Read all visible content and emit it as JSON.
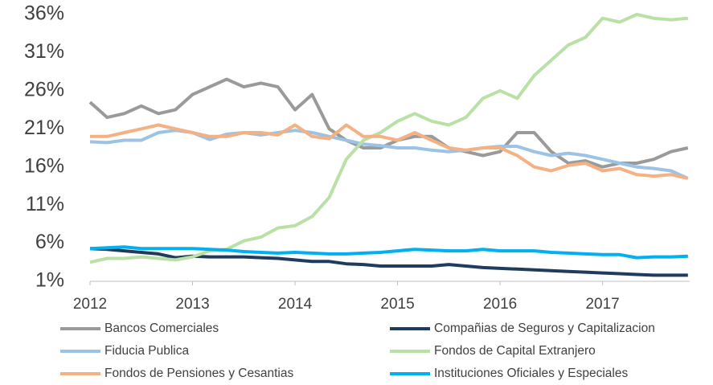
{
  "chart_data": {
    "type": "line",
    "x": [
      2012,
      2012.167,
      2012.333,
      2012.5,
      2012.667,
      2012.833,
      2013,
      2013.167,
      2013.333,
      2013.5,
      2013.667,
      2013.833,
      2014,
      2014.167,
      2014.333,
      2014.5,
      2014.667,
      2014.833,
      2015,
      2015.167,
      2015.333,
      2015.5,
      2015.667,
      2015.833,
      2016,
      2016.167,
      2016.333,
      2016.5,
      2016.667,
      2016.833,
      2017,
      2017.167,
      2017.333,
      2017.5,
      2017.667,
      2017.833
    ],
    "xlim": [
      2012,
      2017.85
    ],
    "xticks": [
      2012,
      2013,
      2014,
      2015,
      2016,
      2017
    ],
    "ylim": [
      1,
      36
    ],
    "yticks": [
      {
        "value": 1,
        "label": "1%"
      },
      {
        "value": 6,
        "label": "6%"
      },
      {
        "value": 11,
        "label": "11%"
      },
      {
        "value": 16,
        "label": "16%"
      },
      {
        "value": 21,
        "label": "21%"
      },
      {
        "value": 26,
        "label": "26%"
      },
      {
        "value": 31,
        "label": "31%"
      },
      {
        "value": 36,
        "label": "36%"
      }
    ],
    "grid": false,
    "legend": "bottom",
    "series": [
      {
        "name": "Bancos Comerciales",
        "color": "#9a9a9a",
        "values": [
          24.5,
          22.5,
          23,
          24,
          23,
          23.5,
          25.5,
          26.5,
          27.5,
          26.5,
          27,
          26.5,
          23.5,
          25.5,
          21,
          19.5,
          18.5,
          18.5,
          19.5,
          20,
          20,
          18.5,
          18,
          17.5,
          18,
          20.5,
          20.5,
          18,
          16.5,
          16.8,
          16,
          16.5,
          16.5,
          17,
          18,
          18.5
        ]
      },
      {
        "name": "Compañias de Seguros y Capitalizacion",
        "color": "#1f3c5e",
        "values": [
          5.3,
          5.2,
          5,
          4.8,
          4.6,
          4.1,
          4.3,
          4.2,
          4.2,
          4.2,
          4.1,
          4,
          3.8,
          3.6,
          3.6,
          3.3,
          3.2,
          3,
          3,
          3,
          3,
          3.2,
          3,
          2.8,
          2.7,
          2.6,
          2.5,
          2.4,
          2.3,
          2.2,
          2.1,
          2,
          1.9,
          1.8,
          1.8,
          1.8
        ]
      },
      {
        "name": "Fiducia Publica",
        "color": "#9cc2e5",
        "values": [
          19.3,
          19.2,
          19.5,
          19.5,
          20.5,
          20.8,
          20.5,
          19.6,
          20.3,
          20.5,
          20.2,
          20.5,
          20.8,
          20.5,
          20,
          19.5,
          19,
          18.8,
          18.5,
          18.5,
          18.2,
          18,
          18.2,
          18.5,
          18.7,
          18.7,
          18,
          17.5,
          17.8,
          17.5,
          17,
          16.5,
          16,
          15.8,
          15.5,
          14.5
        ]
      },
      {
        "name": "Fondos de Capital Extranjero",
        "color": "#b9e0a5",
        "values": [
          3.5,
          4,
          4,
          4.2,
          4,
          3.8,
          4.2,
          5,
          5.2,
          6.3,
          6.8,
          8,
          8.3,
          9.5,
          12,
          17,
          19.5,
          20.5,
          22,
          23,
          22,
          21.5,
          22.5,
          25,
          26,
          25,
          28,
          30,
          32,
          33,
          35.5,
          35,
          36,
          35.5,
          35.3,
          35.5
        ]
      },
      {
        "name": "Fondos de Pensiones y Cesantias",
        "color": "#f4b183",
        "values": [
          20,
          20,
          20.5,
          21,
          21.5,
          21,
          20.5,
          20,
          20,
          20.5,
          20.5,
          20.2,
          21.5,
          20,
          19.7,
          21.5,
          20,
          20,
          19.5,
          20.5,
          19.5,
          18.5,
          18.2,
          18.5,
          18.5,
          17.5,
          16,
          15.5,
          16.2,
          16.5,
          15.5,
          15.8,
          15,
          14.8,
          15,
          14.5
        ]
      },
      {
        "name": "Instituciones Oficiales y Especiales",
        "color": "#00b0f0",
        "values": [
          5.3,
          5.4,
          5.5,
          5.3,
          5.3,
          5.3,
          5.3,
          5.2,
          5.1,
          4.9,
          4.8,
          4.7,
          4.8,
          4.7,
          4.6,
          4.6,
          4.7,
          4.8,
          5,
          5.2,
          5.1,
          5,
          5,
          5.2,
          5,
          5,
          5,
          4.8,
          4.7,
          4.6,
          4.5,
          4.5,
          4.1,
          4.2,
          4.2,
          4.3
        ]
      }
    ]
  }
}
